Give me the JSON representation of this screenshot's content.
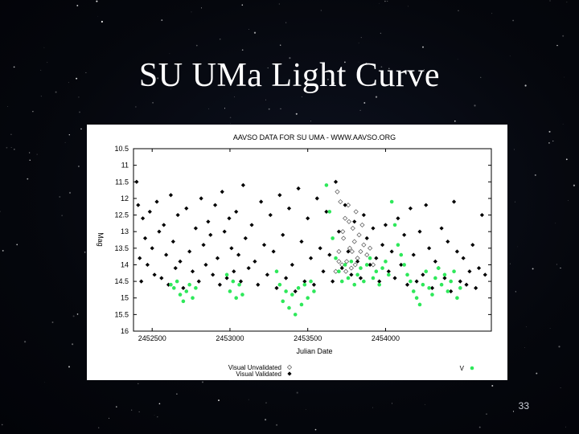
{
  "slide": {
    "title": "SU UMa Light Curve",
    "number": "33",
    "background": "#05070d",
    "title_color": "#ffffff"
  },
  "chart_data": {
    "type": "scatter",
    "title": "AAVSO DATA FOR SU UMA - WWW.AAVSO.ORG",
    "xlabel": "Julian Date",
    "ylabel": "Mag",
    "xlim": [
      2452380,
      2454680
    ],
    "ylim": [
      10.5,
      16
    ],
    "y_inverted": true,
    "grid": false,
    "x_ticks": [
      2452500,
      2453000,
      2453500,
      2454000
    ],
    "y_ticks": [
      10.5,
      11,
      11.5,
      12,
      12.5,
      13,
      13.5,
      14,
      14.5,
      15,
      15.5,
      16
    ],
    "legend_placement": "bottom",
    "series": [
      {
        "name": "Visual Unvalidated",
        "marker": "open-diamond",
        "color": "#555555",
        "x": [
          2453680,
          2453690,
          2453700,
          2453710,
          2453720,
          2453730,
          2453740,
          2453750,
          2453760,
          2453770,
          2453780,
          2453790,
          2453800,
          2453810,
          2453820,
          2453830,
          2453840,
          2453850,
          2453860,
          2453880,
          2453900,
          2453920,
          2453700,
          2453725,
          2453745,
          2453765,
          2453785,
          2453805
        ],
        "y": [
          14.2,
          11.8,
          13.6,
          12.1,
          14.0,
          13.2,
          12.6,
          13.9,
          12.2,
          13.5,
          14.1,
          12.9,
          13.3,
          12.4,
          13.8,
          13.1,
          13.6,
          12.8,
          13.4,
          13.7,
          13.5,
          14.0,
          13.9,
          13.0,
          14.2,
          12.7,
          13.6,
          14.0
        ]
      },
      {
        "name": "Visual Validated",
        "marker": "filled-diamond",
        "color": "#000000",
        "x": [
          2452400,
          2452410,
          2452420,
          2452430,
          2452440,
          2452455,
          2452470,
          2452485,
          2452500,
          2452515,
          2452530,
          2452545,
          2452560,
          2452575,
          2452590,
          2452605,
          2452620,
          2452635,
          2452650,
          2452665,
          2452680,
          2452700,
          2452720,
          2452740,
          2452760,
          2452780,
          2452800,
          2452815,
          2452830,
          2452845,
          2452860,
          2452875,
          2452890,
          2452905,
          2452920,
          2452935,
          2452950,
          2452965,
          2452980,
          2452995,
          2453010,
          2453025,
          2453040,
          2453055,
          2453070,
          2453085,
          2453100,
          2453120,
          2453140,
          2453160,
          2453180,
          2453200,
          2453220,
          2453240,
          2453260,
          2453280,
          2453300,
          2453320,
          2453340,
          2453360,
          2453380,
          2453400,
          2453420,
          2453440,
          2453460,
          2453480,
          2453500,
          2453520,
          2453540,
          2453560,
          2453580,
          2453600,
          2453620,
          2453640,
          2453660,
          2453680,
          2453700,
          2453720,
          2453740,
          2453760,
          2453780,
          2453800,
          2453820,
          2453840,
          2453860,
          2453880,
          2453900,
          2453920,
          2453940,
          2453960,
          2453980,
          2454000,
          2454020,
          2454040,
          2454060,
          2454080,
          2454100,
          2454120,
          2454140,
          2454160,
          2454180,
          2454200,
          2454220,
          2454240,
          2454260,
          2454280,
          2454300,
          2454320,
          2454340,
          2454360,
          2454380,
          2454400,
          2454420,
          2454440,
          2454460,
          2454480,
          2454500,
          2454520,
          2454540,
          2454560,
          2454580,
          2454600,
          2454620,
          2454640
        ],
        "y": [
          11.5,
          12.2,
          13.8,
          14.5,
          12.6,
          13.2,
          14.0,
          12.4,
          13.5,
          14.3,
          12.1,
          13.0,
          14.4,
          12.8,
          13.7,
          14.6,
          11.9,
          13.3,
          14.1,
          12.5,
          13.9,
          14.7,
          12.3,
          13.6,
          14.2,
          12.9,
          14.5,
          12.0,
          13.4,
          14.0,
          12.7,
          13.1,
          14.3,
          12.2,
          13.8,
          14.6,
          11.8,
          13.0,
          14.4,
          12.6,
          13.5,
          14.2,
          12.4,
          13.7,
          14.5,
          11.6,
          13.2,
          14.1,
          12.8,
          13.9,
          14.6,
          12.1,
          13.4,
          14.3,
          12.5,
          13.6,
          14.7,
          11.9,
          13.1,
          14.4,
          12.3,
          14.0,
          14.8,
          11.7,
          13.3,
          14.5,
          12.6,
          13.8,
          14.6,
          12.0,
          13.5,
          14.2,
          12.4,
          13.7,
          14.5,
          11.5,
          13.0,
          14.1,
          12.2,
          13.6,
          14.3,
          12.7,
          13.9,
          14.4,
          12.5,
          13.2,
          14.0,
          12.9,
          13.8,
          14.5,
          13.4,
          12.8,
          14.2,
          13.6,
          14.4,
          12.6,
          14.0,
          13.1,
          14.6,
          12.3,
          13.7,
          14.5,
          13.0,
          14.3,
          12.2,
          13.5,
          14.7,
          13.9,
          14.1,
          12.9,
          14.4,
          13.3,
          14.8,
          12.1,
          13.6,
          14.5,
          13.8,
          14.6,
          14.2,
          13.4,
          14.7,
          14.1,
          12.5,
          14.3
        ]
      },
      {
        "name": "V",
        "marker": "filled-circle",
        "color": "#2ee85a",
        "x": [
          2452620,
          2452640,
          2452660,
          2452680,
          2452700,
          2452720,
          2452740,
          2452760,
          2452780,
          2452980,
          2453000,
          2453020,
          2453040,
          2453060,
          2453080,
          2453300,
          2453320,
          2453340,
          2453360,
          2453380,
          2453400,
          2453420,
          2453440,
          2453460,
          2453480,
          2453500,
          2453520,
          2453540,
          2453620,
          2453640,
          2453660,
          2453680,
          2453700,
          2453720,
          2453740,
          2453760,
          2453780,
          2453800,
          2453820,
          2453840,
          2453860,
          2453880,
          2453900,
          2453920,
          2453940,
          2453960,
          2453980,
          2454000,
          2454020,
          2454040,
          2454060,
          2454080,
          2454100,
          2454120,
          2454140,
          2454160,
          2454180,
          2454200,
          2454220,
          2454240,
          2454260,
          2454280,
          2454300,
          2454320,
          2454340,
          2454360,
          2454380,
          2454400,
          2454420,
          2454440,
          2454460,
          2454480
        ],
        "y": [
          14.6,
          14.7,
          14.5,
          14.9,
          15.1,
          14.8,
          14.6,
          15.0,
          14.7,
          14.3,
          14.8,
          14.5,
          15.0,
          14.6,
          14.9,
          14.2,
          14.6,
          15.1,
          14.8,
          15.3,
          14.9,
          15.5,
          14.7,
          15.2,
          14.6,
          15.0,
          14.5,
          14.8,
          11.6,
          12.4,
          13.2,
          13.8,
          14.2,
          14.5,
          14.0,
          14.4,
          13.9,
          14.6,
          14.3,
          14.1,
          14.5,
          14.0,
          13.8,
          14.4,
          14.2,
          14.6,
          14.1,
          13.9,
          14.3,
          12.1,
          12.8,
          13.4,
          13.7,
          14.0,
          14.3,
          14.5,
          14.8,
          15.0,
          15.2,
          14.6,
          14.2,
          14.7,
          14.9,
          14.4,
          14.1,
          14.6,
          14.3,
          14.8,
          14.5,
          14.2,
          15.0,
          14.7
        ]
      }
    ]
  }
}
